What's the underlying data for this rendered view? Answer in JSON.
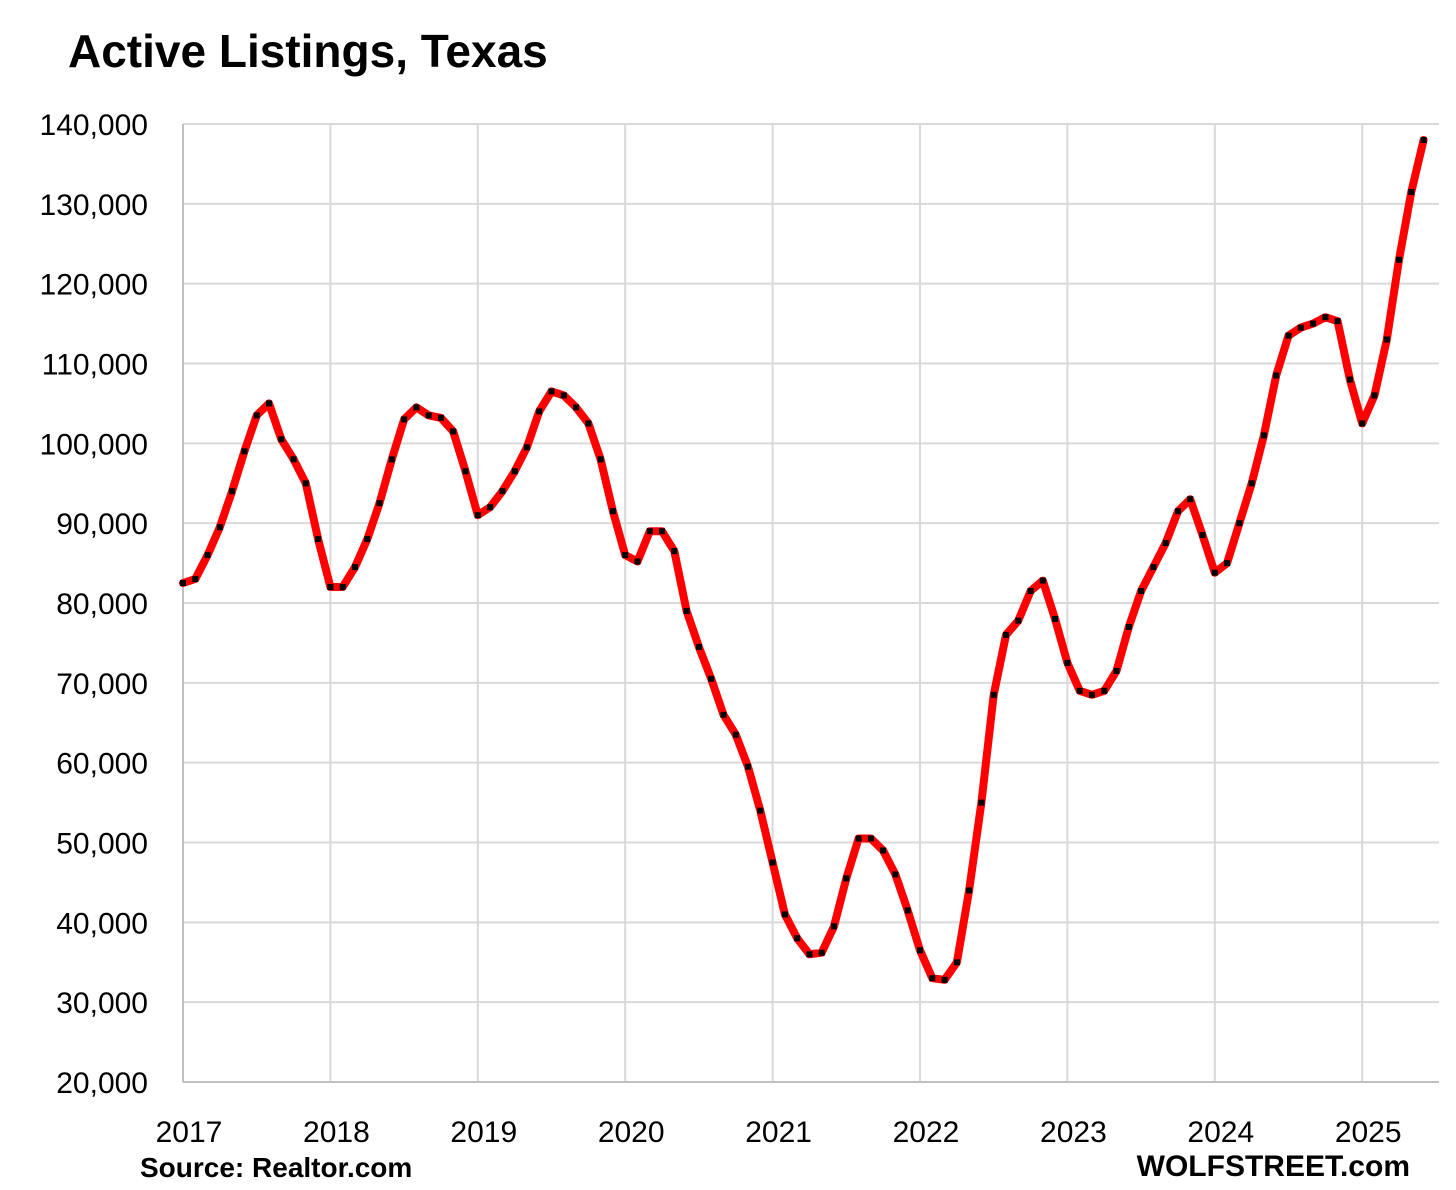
{
  "chart_data": {
    "type": "line",
    "title": "Active Listings, Texas",
    "xlabel": "",
    "ylabel": "",
    "ylim": [
      20000,
      140000
    ],
    "yticks": [
      "20,000",
      "30,000",
      "40,000",
      "50,000",
      "60,000",
      "70,000",
      "80,000",
      "90,000",
      "100,000",
      "110,000",
      "120,000",
      "130,000",
      "140,000"
    ],
    "xticks": [
      "2017",
      "2018",
      "2019",
      "2020",
      "2021",
      "2022",
      "2023",
      "2024",
      "2025"
    ],
    "grid": true,
    "legend": "none",
    "series": [
      {
        "color": "#ff0000",
        "marker_color": "#000000",
        "x": [
          "2017-01",
          "2017-02",
          "2017-03",
          "2017-04",
          "2017-05",
          "2017-06",
          "2017-07",
          "2017-08",
          "2017-09",
          "2017-10",
          "2017-11",
          "2017-12",
          "2018-01",
          "2018-02",
          "2018-03",
          "2018-04",
          "2018-05",
          "2018-06",
          "2018-07",
          "2018-08",
          "2018-09",
          "2018-10",
          "2018-11",
          "2018-12",
          "2019-01",
          "2019-02",
          "2019-03",
          "2019-04",
          "2019-05",
          "2019-06",
          "2019-07",
          "2019-08",
          "2019-09",
          "2019-10",
          "2019-11",
          "2019-12",
          "2020-01",
          "2020-02",
          "2020-03",
          "2020-04",
          "2020-05",
          "2020-06",
          "2020-07",
          "2020-08",
          "2020-09",
          "2020-10",
          "2020-11",
          "2020-12",
          "2021-01",
          "2021-02",
          "2021-03",
          "2021-04",
          "2021-05",
          "2021-06",
          "2021-07",
          "2021-08",
          "2021-09",
          "2021-10",
          "2021-11",
          "2021-12",
          "2022-01",
          "2022-02",
          "2022-03",
          "2022-04",
          "2022-05",
          "2022-06",
          "2022-07",
          "2022-08",
          "2022-09",
          "2022-10",
          "2022-11",
          "2022-12",
          "2023-01",
          "2023-02",
          "2023-03",
          "2023-04",
          "2023-05",
          "2023-06",
          "2023-07",
          "2023-08",
          "2023-09",
          "2023-10",
          "2023-11",
          "2023-12",
          "2024-01",
          "2024-02",
          "2024-03",
          "2024-04",
          "2024-05",
          "2024-06",
          "2024-07",
          "2024-08",
          "2024-09",
          "2024-10",
          "2024-11",
          "2024-12",
          "2025-01",
          "2025-02",
          "2025-03",
          "2025-04",
          "2025-05",
          "2025-06"
        ],
        "values": [
          82500,
          83000,
          86000,
          89500,
          94000,
          99000,
          103500,
          105000,
          100500,
          98000,
          95000,
          88000,
          82000,
          82000,
          84500,
          88000,
          92500,
          98000,
          103000,
          104500,
          103500,
          103200,
          101500,
          96500,
          91000,
          92000,
          94000,
          96500,
          99500,
          104000,
          106500,
          106000,
          104500,
          102500,
          98000,
          91500,
          86000,
          85200,
          89000,
          89000,
          86500,
          79000,
          74500,
          70500,
          66000,
          63500,
          59500,
          54000,
          47500,
          41000,
          38000,
          36000,
          36200,
          39500,
          45500,
          50500,
          50500,
          49000,
          46000,
          41500,
          36500,
          33000,
          32800,
          35000,
          44000,
          55000,
          68500,
          76000,
          77800,
          81500,
          82800,
          78000,
          72500,
          69000,
          68500,
          69000,
          71500,
          77000,
          81500,
          84500,
          87500,
          91500,
          93000,
          88500,
          83800,
          85000,
          90000,
          95000,
          101000,
          108500,
          113500,
          114500,
          115000,
          115800,
          115300,
          108000,
          102500,
          106000,
          113000,
          123000,
          131500,
          138000
        ]
      }
    ]
  },
  "notes": {
    "source": "Source: Realtor.com",
    "brand": "WOLFSTREET.com"
  }
}
